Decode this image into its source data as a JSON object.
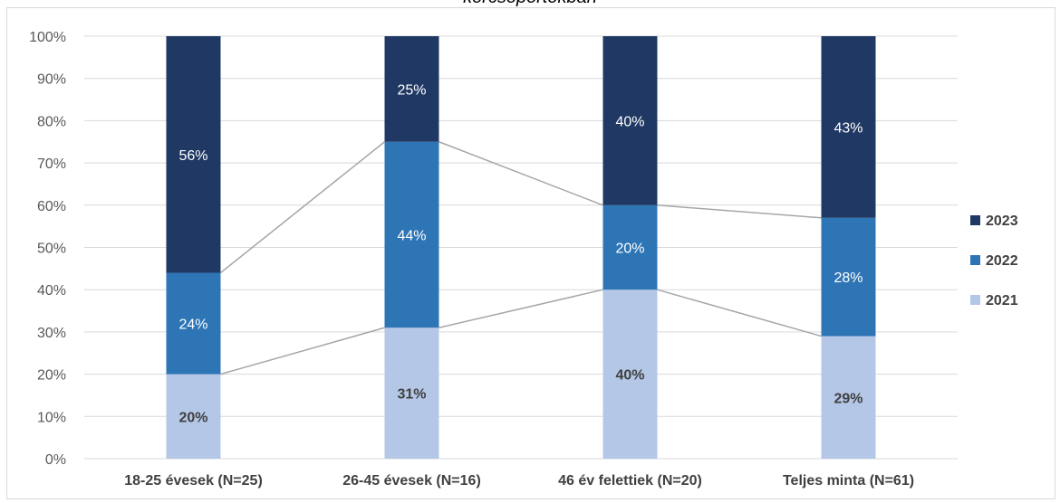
{
  "chart_data": {
    "type": "bar",
    "stacked": true,
    "percent_stacked": true,
    "title": "korcsoportokban",
    "categories": [
      "18-25 évesek (N=25)",
      "26-45 évesek (N=16)",
      "46 év felettiek (N=20)",
      "Teljes minta (N=61)"
    ],
    "series": [
      {
        "name": "2021",
        "values": [
          20,
          31,
          40,
          29
        ],
        "color": "#b4c7e7",
        "label_color": "#404040",
        "label_bold": true
      },
      {
        "name": "2022",
        "values": [
          24,
          44,
          20,
          28
        ],
        "color": "#2e75b6",
        "label_color": "#ffffff",
        "label_bold": false
      },
      {
        "name": "2023",
        "values": [
          56,
          25,
          40,
          43
        ],
        "color": "#203864",
        "label_color": "#ffffff",
        "label_bold": false
      }
    ],
    "data_labels": [
      [
        "20%",
        "31%",
        "40%",
        "29%"
      ],
      [
        "24%",
        "44%",
        "20%",
        "28%"
      ],
      [
        "56%",
        "25%",
        "40%",
        "43%"
      ]
    ],
    "yticks": [
      "0%",
      "10%",
      "20%",
      "30%",
      "40%",
      "50%",
      "60%",
      "70%",
      "80%",
      "90%",
      "100%"
    ],
    "ylim": [
      0,
      100
    ],
    "xlabel": "",
    "ylabel": "",
    "grid": true,
    "series_lines": true,
    "legend_position": "right",
    "legend_order": [
      "2023",
      "2022",
      "2021"
    ]
  }
}
